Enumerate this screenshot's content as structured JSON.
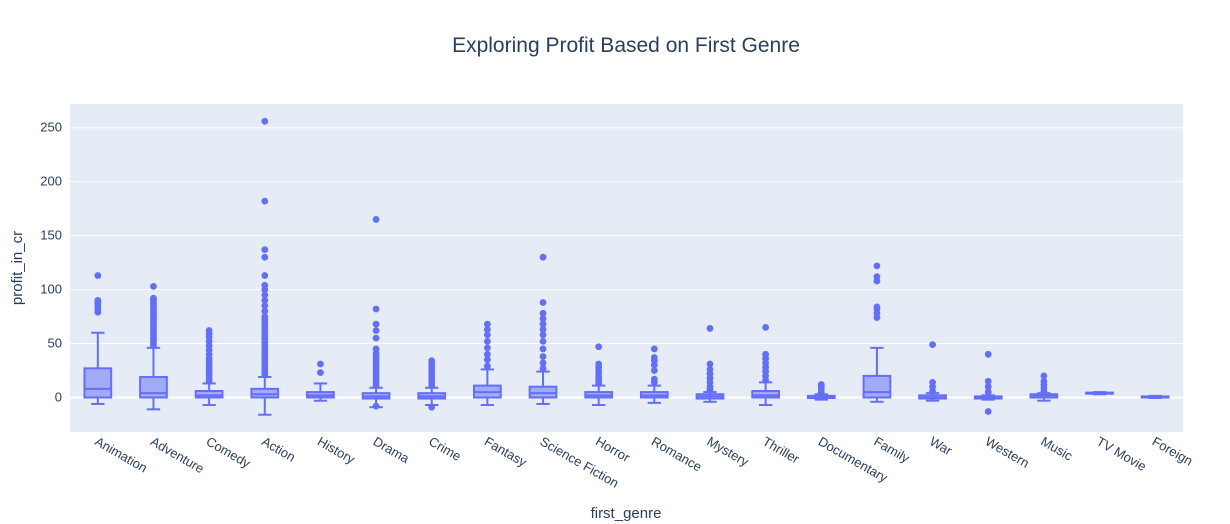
{
  "chart_data": {
    "type": "box",
    "title": "Exploring Profit Based on First Genre",
    "xlabel": "first_genre",
    "ylabel": "profit_in_cr",
    "ylim": [
      -32,
      272
    ],
    "yticks": [
      0,
      50,
      100,
      150,
      200,
      250
    ],
    "grid": true,
    "legend": "none",
    "colors": {
      "box": "#636efa",
      "box_fill": "#a3aaf5",
      "plot_bg": "#e5ecf6",
      "grid": "#ffffff",
      "text": "#2a3f5f"
    },
    "categories": [
      "Animation",
      "Adventure",
      "Comedy",
      "Action",
      "History",
      "Drama",
      "Crime",
      "Fantasy",
      "Science Fiction",
      "Horror",
      "Romance",
      "Mystery",
      "Thriller",
      "Documentary",
      "Family",
      "War",
      "Western",
      "Music",
      "TV Movie",
      "Foreign"
    ],
    "boxes": [
      {
        "min": -6,
        "q1": 0,
        "median": 8,
        "q3": 27,
        "max": 60,
        "outliers": [
          79,
          82,
          85,
          87,
          89,
          90,
          113
        ]
      },
      {
        "min": -11,
        "q1": 0,
        "median": 4,
        "q3": 19,
        "max": 46,
        "outliers": [
          48,
          50,
          52,
          54,
          56,
          58,
          60,
          62,
          64,
          66,
          68,
          70,
          72,
          74,
          76,
          78,
          80,
          82,
          84,
          86,
          88,
          90,
          92,
          103
        ]
      },
      {
        "min": -7,
        "q1": 0,
        "median": 2,
        "q3": 6,
        "max": 13,
        "outliers": [
          15,
          18,
          21,
          24,
          27,
          30,
          33,
          36,
          40,
          44,
          48,
          52,
          56,
          59,
          62
        ]
      },
      {
        "min": -16,
        "q1": 0,
        "median": 3,
        "q3": 8,
        "max": 19,
        "outliers": [
          21,
          24,
          27,
          30,
          33,
          36,
          39,
          42,
          45,
          48,
          51,
          54,
          57,
          60,
          63,
          66,
          69,
          72,
          75,
          80,
          85,
          90,
          95,
          100,
          104,
          113,
          130,
          137,
          182,
          256
        ]
      },
      {
        "min": -3,
        "q1": 0,
        "median": 2,
        "q3": 5,
        "max": 13,
        "outliers": [
          23,
          31
        ]
      },
      {
        "min": -9,
        "q1": -1,
        "median": 1,
        "q3": 4,
        "max": 9,
        "outliers": [
          -8,
          11,
          14,
          17,
          20,
          23,
          26,
          29,
          32,
          35,
          38,
          41,
          45,
          55,
          62,
          68,
          82,
          165
        ]
      },
      {
        "min": -7,
        "q1": -1,
        "median": 1,
        "q3": 4,
        "max": 9,
        "outliers": [
          -9,
          11,
          14,
          17,
          20,
          23,
          26,
          29,
          32,
          34
        ]
      },
      {
        "min": -7,
        "q1": 0,
        "median": 5,
        "q3": 11,
        "max": 26,
        "outliers": [
          29,
          35,
          40,
          46,
          52,
          58,
          63,
          68
        ]
      },
      {
        "min": -6,
        "q1": 0,
        "median": 4,
        "q3": 10,
        "max": 24,
        "outliers": [
          27,
          32,
          38,
          45,
          52,
          58,
          63,
          68,
          73,
          78,
          88,
          130
        ]
      },
      {
        "min": -7,
        "q1": 0,
        "median": 2,
        "q3": 5,
        "max": 11,
        "outliers": [
          13,
          16,
          19,
          22,
          25,
          28,
          31,
          47
        ]
      },
      {
        "min": -5,
        "q1": 0,
        "median": 2,
        "q3": 5,
        "max": 11,
        "outliers": [
          14,
          17,
          25,
          30,
          34,
          37,
          45
        ]
      },
      {
        "min": -4,
        "q1": -1,
        "median": 1,
        "q3": 3,
        "max": 5,
        "outliers": [
          7,
          10,
          14,
          18,
          22,
          26,
          31,
          64
        ]
      },
      {
        "min": -7,
        "q1": 0,
        "median": 2,
        "q3": 6,
        "max": 14,
        "outliers": [
          16,
          20,
          24,
          28,
          32,
          36,
          40,
          65
        ]
      },
      {
        "min": -2,
        "q1": -0.5,
        "median": 0.5,
        "q3": 1.5,
        "max": 3,
        "outliers": [
          5,
          8,
          10,
          12
        ]
      },
      {
        "min": -4,
        "q1": 0,
        "median": 5,
        "q3": 20,
        "max": 46,
        "outliers": [
          74,
          78,
          82,
          84,
          108,
          112,
          122
        ]
      },
      {
        "min": -3,
        "q1": -1,
        "median": 0,
        "q3": 2,
        "max": 4,
        "outliers": [
          6,
          10,
          14,
          49
        ]
      },
      {
        "min": -2,
        "q1": -1,
        "median": 0,
        "q3": 1,
        "max": 2,
        "outliers": [
          -13,
          5,
          10,
          15,
          40
        ]
      },
      {
        "min": -3,
        "q1": 0,
        "median": 2,
        "q3": 3,
        "max": 4,
        "outliers": [
          6,
          9,
          12,
          15,
          20
        ]
      },
      {
        "min": 3,
        "q1": 3.5,
        "median": 4,
        "q3": 4.5,
        "max": 5,
        "outliers": []
      },
      {
        "min": -0.5,
        "q1": 0,
        "median": 0.5,
        "q3": 1,
        "max": 1.5,
        "outliers": []
      }
    ]
  }
}
